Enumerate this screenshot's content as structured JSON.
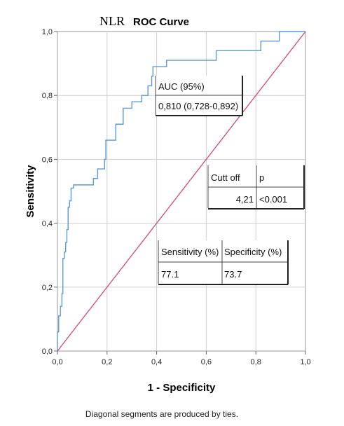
{
  "chart_data": {
    "type": "line",
    "title_prefix": "NLR",
    "title": "ROC Curve",
    "xlabel": "1 - Specificity",
    "ylabel": "Sensitivity",
    "xlim": [
      0,
      1
    ],
    "ylim": [
      0,
      1
    ],
    "x_ticks": [
      "0,0",
      "0,2",
      "0,4",
      "0,6",
      "0,8",
      "1,0"
    ],
    "y_ticks": [
      "0,0",
      "0,2",
      "0,4",
      "0,6",
      "0,8",
      "1,0"
    ],
    "grid": true,
    "footnote": "Diagonal segments are produced by ties.",
    "series": [
      {
        "color": "#5b9bd5",
        "points": [
          [
            0.0,
            0.0
          ],
          [
            0.0,
            0.06
          ],
          [
            0.005,
            0.06
          ],
          [
            0.005,
            0.11
          ],
          [
            0.012,
            0.11
          ],
          [
            0.012,
            0.14
          ],
          [
            0.018,
            0.14
          ],
          [
            0.018,
            0.18
          ],
          [
            0.022,
            0.18
          ],
          [
            0.022,
            0.29
          ],
          [
            0.028,
            0.29
          ],
          [
            0.028,
            0.31
          ],
          [
            0.033,
            0.31
          ],
          [
            0.033,
            0.34
          ],
          [
            0.038,
            0.34
          ],
          [
            0.038,
            0.38
          ],
          [
            0.043,
            0.38
          ],
          [
            0.043,
            0.45
          ],
          [
            0.049,
            0.45
          ],
          [
            0.049,
            0.47
          ],
          [
            0.055,
            0.47
          ],
          [
            0.055,
            0.51
          ],
          [
            0.065,
            0.51
          ],
          [
            0.065,
            0.52
          ],
          [
            0.145,
            0.52
          ],
          [
            0.145,
            0.54
          ],
          [
            0.162,
            0.54
          ],
          [
            0.162,
            0.57
          ],
          [
            0.19,
            0.57
          ],
          [
            0.19,
            0.6
          ],
          [
            0.195,
            0.6
          ],
          [
            0.195,
            0.66
          ],
          [
            0.235,
            0.66
          ],
          [
            0.235,
            0.71
          ],
          [
            0.265,
            0.71
          ],
          [
            0.265,
            0.76
          ],
          [
            0.3,
            0.76
          ],
          [
            0.3,
            0.78
          ],
          [
            0.34,
            0.78
          ],
          [
            0.34,
            0.8
          ],
          [
            0.365,
            0.8
          ],
          [
            0.365,
            0.83
          ],
          [
            0.38,
            0.83
          ],
          [
            0.38,
            0.86
          ],
          [
            0.385,
            0.86
          ],
          [
            0.385,
            0.89
          ],
          [
            0.44,
            0.89
          ],
          [
            0.44,
            0.91
          ],
          [
            0.64,
            0.91
          ],
          [
            0.64,
            0.94
          ],
          [
            0.82,
            0.94
          ],
          [
            0.82,
            0.97
          ],
          [
            0.895,
            0.97
          ],
          [
            0.895,
            1.0
          ],
          [
            1.0,
            1.0
          ]
        ]
      },
      {
        "color": "#d6486f",
        "points": [
          [
            0,
            0
          ],
          [
            1,
            1
          ]
        ]
      }
    ],
    "tables": [
      {
        "rows": [
          [
            "AUC (95%)"
          ],
          [
            "0,810 (0,728-0,892)"
          ]
        ]
      },
      {
        "rows": [
          [
            "Cutt off",
            "p"
          ],
          [
            "4,21",
            "<0.001"
          ]
        ]
      },
      {
        "rows": [
          [
            "Sensitivity (%)",
            "Specificity (%)"
          ],
          [
            "77.1",
            "73.7"
          ]
        ]
      }
    ]
  }
}
